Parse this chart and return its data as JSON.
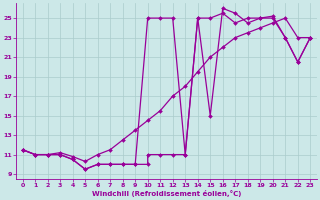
{
  "xlabel": "Windchill (Refroidissement éolien,°C)",
  "bg_color": "#cce8e8",
  "grid_color": "#aacccc",
  "line_color": "#990099",
  "markersize": 2.0,
  "linewidth": 0.9,
  "xlim": [
    -0.5,
    23.5
  ],
  "ylim": [
    8.5,
    26.5
  ],
  "xticks": [
    0,
    1,
    2,
    3,
    4,
    5,
    6,
    7,
    8,
    9,
    10,
    11,
    12,
    13,
    14,
    15,
    16,
    17,
    18,
    19,
    20,
    21,
    22,
    23
  ],
  "yticks": [
    9,
    11,
    13,
    15,
    17,
    19,
    21,
    23,
    25
  ],
  "series1_x": [
    0,
    1,
    2,
    3,
    4,
    5,
    6,
    7,
    8,
    9,
    10,
    11,
    12,
    13,
    14,
    15,
    16,
    17,
    18,
    19,
    20,
    21,
    22,
    23
  ],
  "series1_y": [
    11.5,
    11.0,
    11.0,
    11.0,
    10.5,
    9.5,
    10.0,
    10.0,
    10.0,
    10.0,
    25.0,
    25.0,
    25.0,
    11.0,
    25.0,
    15.0,
    26.0,
    25.5,
    24.5,
    25.0,
    25.0,
    23.0,
    20.5,
    23.0
  ],
  "series2_x": [
    0,
    1,
    2,
    3,
    4,
    5,
    6,
    7,
    8,
    9,
    10,
    11,
    12,
    13,
    14,
    15,
    16,
    17,
    18,
    19,
    20,
    21,
    22,
    23
  ],
  "series2_y": [
    11.5,
    11.0,
    11.0,
    11.2,
    10.8,
    10.3,
    11.0,
    11.5,
    12.5,
    13.5,
    14.5,
    15.5,
    17.0,
    18.0,
    19.5,
    21.0,
    22.0,
    23.0,
    23.5,
    24.0,
    24.5,
    25.0,
    23.0,
    23.0
  ],
  "series3_x": [
    0,
    1,
    2,
    3,
    4,
    5,
    6,
    7,
    8,
    9,
    10,
    10,
    11,
    12,
    13,
    14,
    15,
    16,
    17,
    18,
    19,
    20,
    21,
    22,
    23
  ],
  "series3_y": [
    11.5,
    11.0,
    11.0,
    11.0,
    10.5,
    9.5,
    10.0,
    10.0,
    10.0,
    10.0,
    10.0,
    11.0,
    11.0,
    11.0,
    11.0,
    25.0,
    25.0,
    25.5,
    24.5,
    25.0,
    25.0,
    25.2,
    23.0,
    20.5,
    23.0
  ]
}
